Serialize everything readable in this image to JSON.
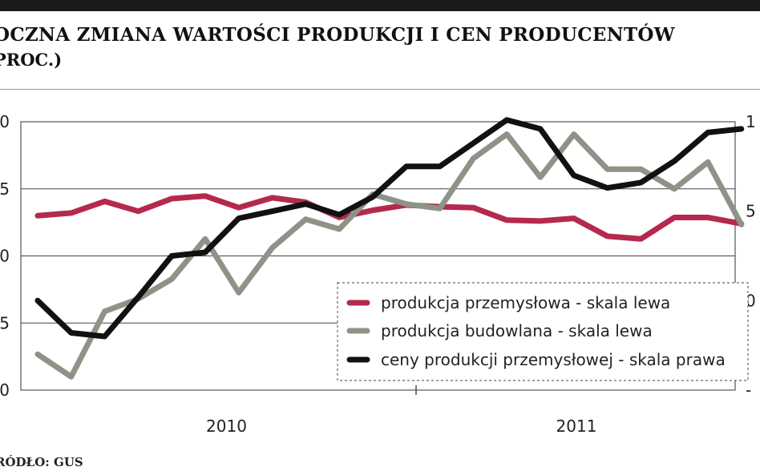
{
  "header": {
    "title": "OCZNA ZMIANA WARTOŚCI PRODUKCJI I CEN PRODUCENTÓW",
    "subtitle": "PROC.)"
  },
  "footer": {
    "source": "RÓDŁO: GUS"
  },
  "chart_data": {
    "type": "line",
    "title": "OCZNA ZMIANA WARTOŚCI PRODUKCJI I CEN PRODUCENTÓW",
    "subtitle": "PROC.)",
    "xlabel": "",
    "ylabel": "",
    "x_tick_labels": [
      "2010",
      "2011"
    ],
    "y_left_ticks": [
      "0",
      "5",
      "0",
      "5",
      "0"
    ],
    "y_left_range": [
      -10,
      20
    ],
    "y_right_ticks": [
      "1",
      "5",
      "0",
      "-"
    ],
    "y_right_range": [
      -5,
      10
    ],
    "x": [
      1,
      2,
      3,
      4,
      5,
      6,
      7,
      8,
      9,
      10,
      11,
      12,
      13,
      14,
      15,
      16,
      17,
      18,
      19,
      20,
      21,
      22
    ],
    "grid": "horizontal",
    "legend_position": "bottom-right",
    "series": [
      {
        "name": "produkcja przemysłowa - skala lewa",
        "axis": "left",
        "color": "#b5294e",
        "values": [
          9.5,
          9.8,
          11.1,
          10.0,
          11.4,
          11.7,
          10.4,
          11.5,
          11.0,
          9.3,
          10.1,
          10.7,
          10.5,
          10.4,
          9.0,
          8.9,
          9.2,
          7.2,
          6.9,
          9.3,
          9.3,
          8.6
        ]
      },
      {
        "name": "produkcja budowlana - skala lewa",
        "axis": "left",
        "color": "#8e9387",
        "values": [
          -6.0,
          -8.5,
          -1.2,
          0.2,
          2.4,
          6.9,
          0.9,
          5.9,
          9.1,
          8.0,
          11.9,
          10.8,
          10.3,
          15.9,
          18.6,
          13.8,
          18.6,
          14.7,
          14.7,
          12.5,
          15.5,
          8.5
        ]
      },
      {
        "name": "ceny produkcji przemysłowej - skala prawa",
        "axis": "right",
        "color": "#111111",
        "values": [
          0.0,
          -1.8,
          -2.0,
          0.2,
          2.5,
          2.7,
          4.6,
          5.0,
          5.4,
          4.8,
          5.8,
          7.5,
          7.5,
          8.8,
          10.1,
          9.6,
          7.0,
          6.3,
          6.6,
          7.8,
          9.4,
          9.6
        ]
      }
    ]
  }
}
